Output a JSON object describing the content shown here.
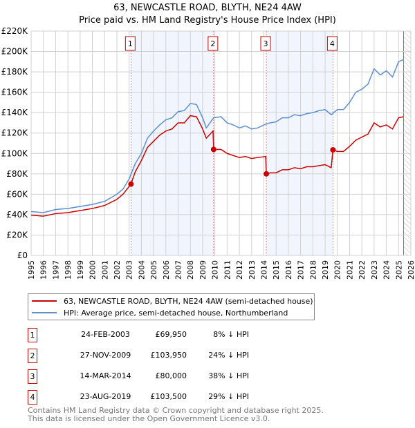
{
  "header": {
    "title": "63, NEWCASTLE ROAD, BLYTH, NE24 4AW",
    "subtitle": "Price paid vs. HM Land Registry's House Price Index (HPI)"
  },
  "chart_data": {
    "type": "line",
    "xlim": [
      1995,
      2026
    ],
    "ylim": [
      0,
      220000
    ],
    "y_ticks": [
      {
        "v": 0,
        "label": "£0"
      },
      {
        "v": 20000,
        "label": "£20K"
      },
      {
        "v": 40000,
        "label": "£40K"
      },
      {
        "v": 60000,
        "label": "£60K"
      },
      {
        "v": 80000,
        "label": "£80K"
      },
      {
        "v": 100000,
        "label": "£100K"
      },
      {
        "v": 120000,
        "label": "£120K"
      },
      {
        "v": 140000,
        "label": "£140K"
      },
      {
        "v": 160000,
        "label": "£160K"
      },
      {
        "v": 180000,
        "label": "£180K"
      },
      {
        "v": 200000,
        "label": "£200K"
      },
      {
        "v": 220000,
        "label": "£220K"
      }
    ],
    "x_ticks": [
      "1995",
      "1996",
      "1997",
      "1998",
      "1999",
      "2000",
      "2001",
      "2002",
      "2003",
      "2004",
      "2005",
      "2006",
      "2007",
      "2008",
      "2009",
      "2010",
      "2011",
      "2012",
      "2013",
      "2014",
      "2015",
      "2016",
      "2017",
      "2018",
      "2019",
      "2020",
      "2021",
      "2022",
      "2023",
      "2024",
      "2025",
      "2026"
    ],
    "forecast_start": 2025.4,
    "shaded_periods": [
      [
        2003.15,
        2009.9
      ],
      [
        2014.2,
        2019.64
      ]
    ],
    "series": [
      {
        "name": "63, NEWCASTLE ROAD, BLYTH, NE24 4AW (semi-detached house)",
        "color": "#cc0000",
        "x": [
          1995,
          1996,
          1997,
          1998,
          1999,
          2000,
          2001,
          2002,
          2002.5,
          2003.15,
          2003.5,
          2004,
          2004.5,
          2005,
          2005.5,
          2006,
          2006.5,
          2007,
          2007.5,
          2008,
          2008.5,
          2009,
          2009.3,
          2009.85,
          2009.9,
          2010.5,
          2011,
          2011.5,
          2012,
          2012.5,
          2013,
          2013.5,
          2014.15,
          2014.2,
          2014.5,
          2015,
          2015.5,
          2016,
          2016.5,
          2017,
          2017.5,
          2018,
          2018.5,
          2019,
          2019.5,
          2019.64,
          2020,
          2020.5,
          2021,
          2021.5,
          2022,
          2022.5,
          2023,
          2023.5,
          2024,
          2024.5,
          2025,
          2025.4
        ],
        "y": [
          39500,
          38500,
          41000,
          42000,
          44000,
          46000,
          49000,
          55000,
          60000,
          69950,
          82000,
          93000,
          106000,
          112000,
          118000,
          122000,
          124000,
          130000,
          130000,
          137000,
          136000,
          124000,
          115000,
          122000,
          103950,
          104000,
          100000,
          98000,
          96000,
          97000,
          95000,
          96000,
          97000,
          80000,
          81000,
          81000,
          84000,
          84000,
          86000,
          85000,
          87000,
          87000,
          88000,
          89000,
          86000,
          103500,
          102000,
          102000,
          107000,
          113000,
          116000,
          119000,
          130000,
          126000,
          128000,
          124000,
          135000,
          136000
        ]
      },
      {
        "name": "HPI: Average price, semi-detached house, Northumberland",
        "color": "#5b8fd0",
        "x": [
          1995,
          1996,
          1997,
          1998,
          1999,
          2000,
          2001,
          2002,
          2002.5,
          2003,
          2003.5,
          2004,
          2004.5,
          2005,
          2005.5,
          2006,
          2006.5,
          2007,
          2007.5,
          2008,
          2008.5,
          2009,
          2009.3,
          2009.9,
          2010.5,
          2011,
          2011.5,
          2012,
          2012.5,
          2013,
          2013.5,
          2014,
          2014.5,
          2015,
          2015.5,
          2016,
          2016.5,
          2017,
          2017.5,
          2018,
          2018.5,
          2019,
          2019.5,
          2020,
          2020.5,
          2021,
          2021.5,
          2022,
          2022.5,
          2023,
          2023.5,
          2024,
          2024.5,
          2025,
          2025.4
        ],
        "y": [
          43000,
          42000,
          45000,
          46000,
          48000,
          50000,
          53000,
          60000,
          65000,
          75000,
          90000,
          100000,
          115000,
          122000,
          128000,
          133000,
          135000,
          141000,
          142000,
          149000,
          148000,
          135000,
          125000,
          135000,
          136000,
          130000,
          128000,
          125000,
          127000,
          124000,
          125000,
          128000,
          130000,
          131000,
          135000,
          135000,
          138000,
          137000,
          139000,
          140000,
          142000,
          143000,
          138000,
          143000,
          143000,
          150000,
          160000,
          163000,
          168000,
          183000,
          177000,
          181000,
          175000,
          190000,
          192000
        ]
      }
    ],
    "sales": [
      {
        "n": "1",
        "x": 2003.15,
        "y": 69950,
        "date": "24-FEB-2003",
        "price": "£69,950",
        "hpi": "8% ↓ HPI"
      },
      {
        "n": "2",
        "x": 2009.9,
        "y": 103950,
        "date": "27-NOV-2009",
        "price": "£103,950",
        "hpi": "24% ↓ HPI"
      },
      {
        "n": "3",
        "x": 2014.2,
        "y": 80000,
        "date": "14-MAR-2014",
        "price": "£80,000",
        "hpi": "38% ↓ HPI"
      },
      {
        "n": "4",
        "x": 2019.64,
        "y": 103500,
        "date": "23-AUG-2019",
        "price": "£103,500",
        "hpi": "29% ↓ HPI"
      }
    ]
  },
  "legend": {
    "items": [
      "63, NEWCASTLE ROAD, BLYTH, NE24 4AW (semi-detached house)",
      "HPI: Average price, semi-detached house, Northumberland"
    ]
  },
  "footer": {
    "line1": "Contains HM Land Registry data © Crown copyright and database right 2025.",
    "line2": "This data is licensed under the Open Government Licence v3.0."
  }
}
